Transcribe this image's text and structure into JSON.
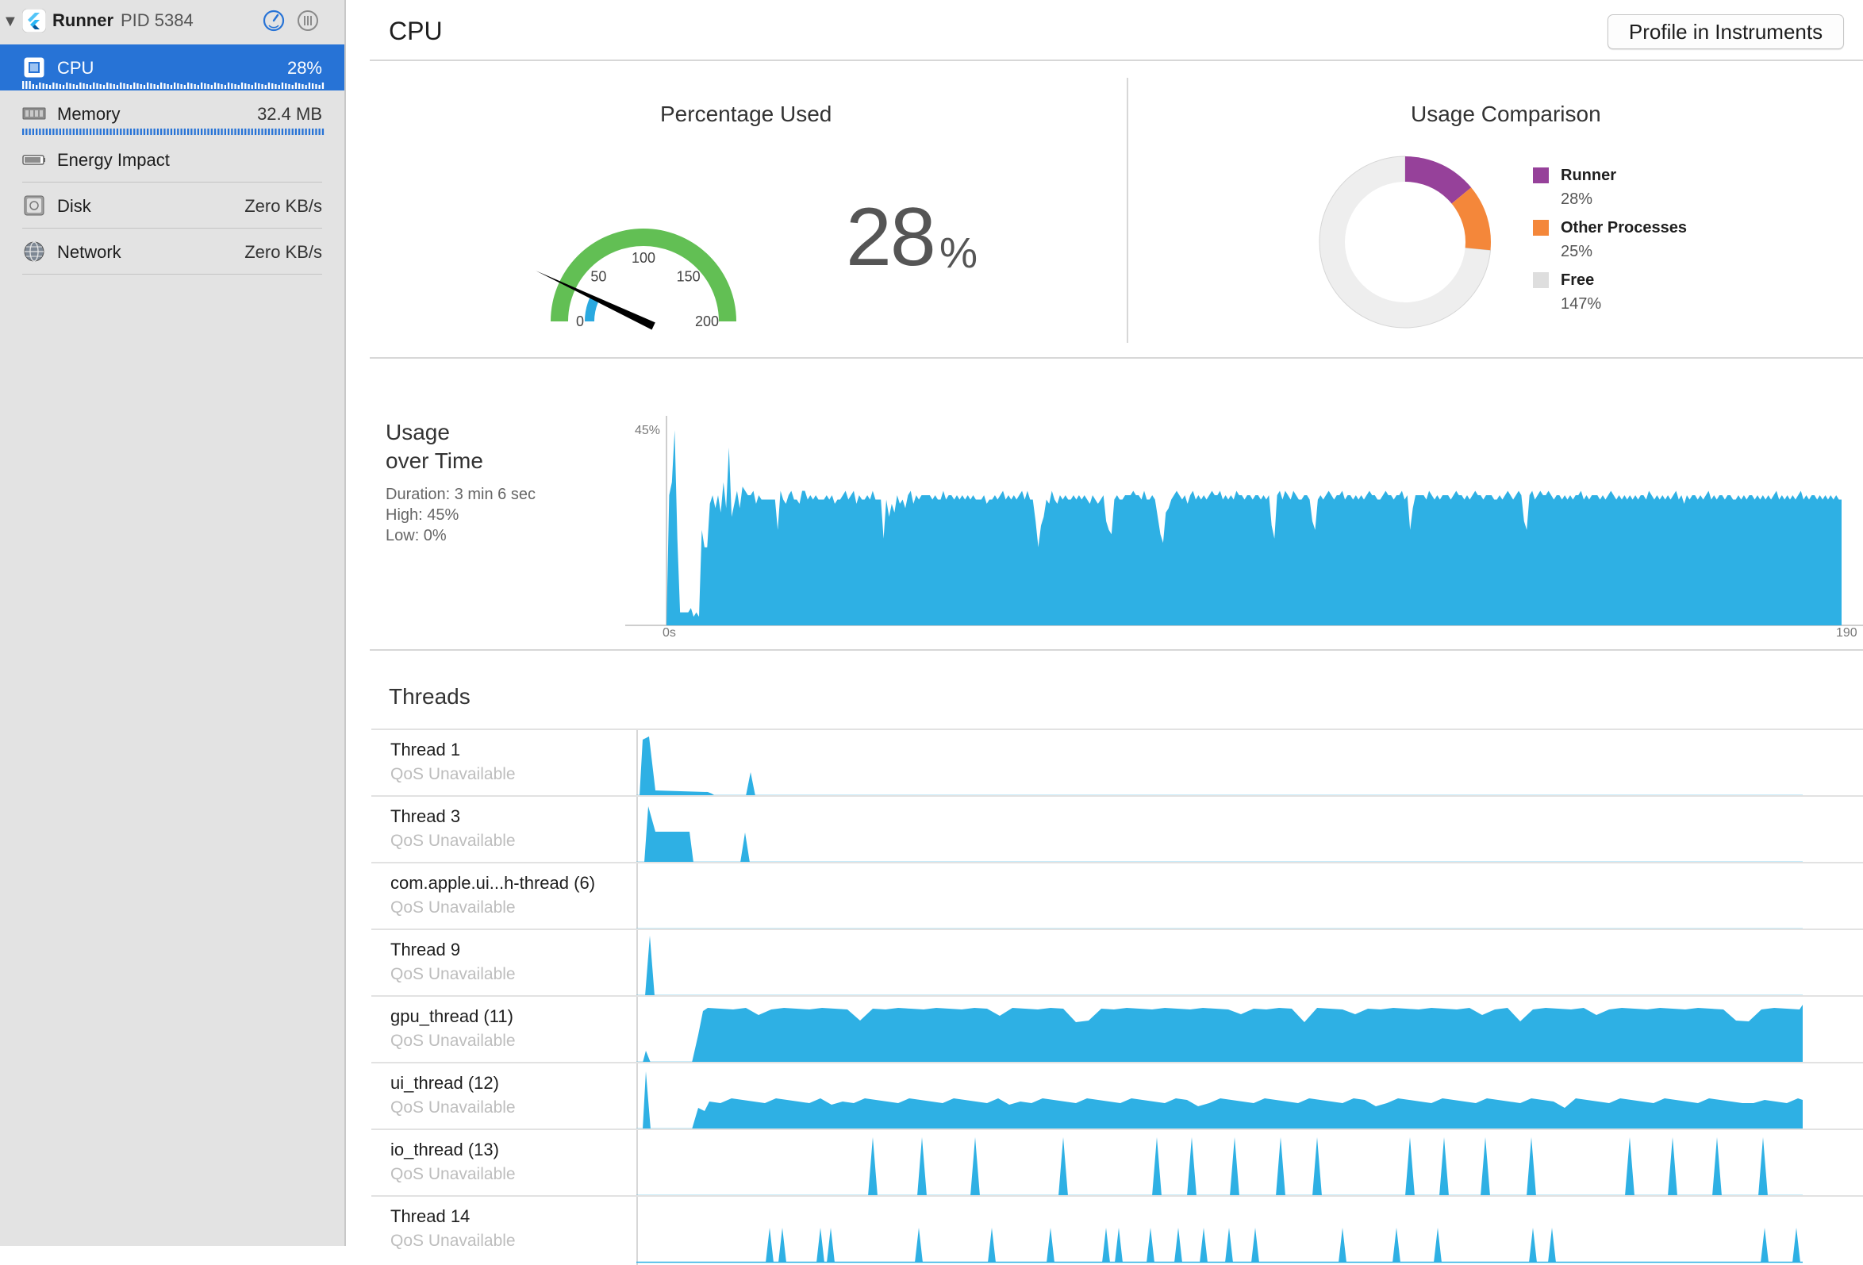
{
  "sidebar": {
    "process_name": "Runner",
    "process_pid": "PID 5384",
    "items": [
      {
        "label": "CPU",
        "value": "28%",
        "icon": "cpu-icon",
        "selected": true
      },
      {
        "label": "Memory",
        "value": "32.4 MB",
        "icon": "memory-icon",
        "selected": false
      },
      {
        "label": "Energy Impact",
        "value": "",
        "icon": "battery-icon",
        "selected": false
      },
      {
        "label": "Disk",
        "value": "Zero KB/s",
        "icon": "disk-icon",
        "selected": false
      },
      {
        "label": "Network",
        "value": "Zero KB/s",
        "icon": "globe-icon",
        "selected": false
      }
    ]
  },
  "header": {
    "title": "CPU",
    "profile_button": "Profile in Instruments"
  },
  "gauge": {
    "title": "Percentage Used",
    "value": "28",
    "unit": "%",
    "ticks": [
      "0",
      "50",
      "100",
      "150",
      "200"
    ],
    "max": 200,
    "colors": {
      "track": "#62bf54",
      "fill": "#2aa9e0",
      "needle": "#000000"
    }
  },
  "comparison": {
    "title": "Usage Comparison",
    "legend": [
      {
        "name": "Runner",
        "value": "28%",
        "color": "#96419a"
      },
      {
        "name": "Other Processes",
        "value": "25%",
        "color": "#f4873a"
      },
      {
        "name": "Free",
        "value": "147%",
        "color": "#dedede"
      }
    ]
  },
  "usage": {
    "title_line1": "Usage",
    "title_line2": "over Time",
    "duration": "Duration: 3 min 6 sec",
    "high": "High: 45%",
    "low": "Low: 0%",
    "y_label": "45%",
    "x_start": "0s",
    "x_end": "190",
    "color": "#2eb0e4"
  },
  "threads_title": "Threads",
  "threads": [
    {
      "name": "Thread 1",
      "qos": "QoS Unavailable"
    },
    {
      "name": "Thread 3",
      "qos": "QoS Unavailable"
    },
    {
      "name": "com.apple.ui...h-thread (6)",
      "qos": "QoS Unavailable"
    },
    {
      "name": "Thread 9",
      "qos": "QoS Unavailable"
    },
    {
      "name": "gpu_thread (11)",
      "qos": "QoS Unavailable"
    },
    {
      "name": "ui_thread (12)",
      "qos": "QoS Unavailable"
    },
    {
      "name": "io_thread (13)",
      "qos": "QoS Unavailable"
    },
    {
      "name": "Thread 14",
      "qos": "QoS Unavailable"
    }
  ],
  "chart_data": {
    "type": "area",
    "title": "Usage over Time",
    "xlabel": "",
    "ylabel": "",
    "xlim": [
      0,
      190
    ],
    "ylim": [
      0,
      45
    ],
    "x_tick_labels": [
      "0s",
      "190"
    ],
    "y_tick_labels": [
      "45%"
    ],
    "series": [
      {
        "values": [
          0,
          30,
          33,
          45,
          20,
          3,
          3,
          3,
          3,
          4,
          2,
          3,
          2,
          22,
          18,
          18,
          28,
          30,
          27,
          30,
          26,
          33,
          27,
          41,
          25,
          28,
          31,
          27,
          32,
          31,
          30,
          30,
          31,
          28,
          30,
          29,
          29,
          29,
          29,
          29,
          29,
          22,
          31,
          29,
          28,
          30,
          31,
          29,
          29,
          28,
          31,
          31,
          29,
          30,
          29,
          30,
          29,
          29,
          29,
          30,
          29,
          30,
          28,
          29,
          29,
          30,
          31,
          29,
          30,
          31,
          28,
          30,
          29,
          29,
          30,
          29,
          31,
          29,
          29,
          29,
          20,
          29,
          25,
          28,
          26,
          30,
          28,
          29,
          27,
          30,
          31,
          28,
          30,
          29,
          30,
          30,
          30,
          30,
          29,
          30,
          29,
          29,
          31,
          29,
          30,
          30,
          29,
          30,
          29,
          30,
          29,
          30,
          29,
          30,
          29,
          29,
          29,
          30,
          28,
          29,
          29,
          30,
          29,
          30,
          31,
          29,
          30,
          29,
          30,
          29,
          30,
          31,
          29,
          31,
          29,
          29,
          24,
          18,
          23,
          25,
          29,
          28,
          31,
          29,
          28,
          30,
          29,
          30,
          29,
          29,
          30,
          29,
          30,
          29,
          30,
          29,
          28,
          30,
          29,
          28,
          29,
          30,
          24,
          22,
          21,
          29,
          30,
          29,
          29,
          30,
          30,
          30,
          31,
          30,
          30,
          29,
          31,
          29,
          29,
          30,
          29,
          25,
          21,
          19,
          26,
          27,
          29,
          30,
          31,
          30,
          29,
          30,
          28,
          30,
          31,
          29,
          30,
          29,
          30,
          29,
          30,
          31,
          30,
          30,
          31,
          29,
          30,
          29,
          30,
          29,
          31,
          30,
          30,
          29,
          30,
          30,
          29,
          30,
          30,
          29,
          30,
          29,
          30,
          23,
          20,
          30,
          31,
          29,
          31,
          30,
          29,
          31,
          30,
          29,
          29,
          30,
          30,
          29,
          24,
          22,
          29,
          30,
          29,
          30,
          31,
          30,
          29,
          30,
          30,
          31,
          29,
          30,
          30,
          29,
          30,
          29,
          30,
          29,
          30,
          31,
          30,
          30,
          29,
          29,
          30,
          31,
          30,
          30,
          29,
          30,
          30,
          31,
          29,
          30,
          22,
          27,
          30,
          30,
          30,
          30,
          29,
          31,
          30,
          29,
          30,
          29,
          30,
          30,
          30,
          29,
          30,
          31,
          30,
          30,
          29,
          30,
          29,
          30,
          31,
          30,
          30,
          29,
          30,
          30,
          30,
          29,
          29,
          30,
          29,
          30,
          31,
          30,
          29,
          30,
          31,
          30,
          24,
          22,
          30,
          31,
          29,
          30,
          31,
          30,
          30,
          31,
          30,
          29,
          30,
          30,
          29,
          30,
          29,
          30,
          29,
          30,
          30,
          31,
          29,
          30,
          29,
          30,
          30,
          30,
          29,
          30,
          29,
          30,
          31,
          30,
          29,
          30,
          29,
          30,
          29,
          30,
          29,
          30,
          29,
          30,
          30,
          29,
          31,
          30,
          29,
          30,
          29,
          30,
          29,
          30,
          29,
          30,
          31,
          29,
          30,
          28,
          30,
          29,
          30,
          30,
          29,
          30,
          29,
          30,
          31,
          29,
          30,
          29,
          30,
          30,
          29,
          30,
          30,
          29,
          29,
          30,
          29,
          30,
          29,
          30,
          30,
          29,
          30,
          29,
          30,
          29,
          30,
          29,
          30,
          31,
          29,
          30,
          29,
          30,
          29,
          30,
          29,
          30,
          31,
          29,
          30,
          29,
          30,
          30,
          29,
          30,
          29,
          30,
          29,
          30,
          29,
          30,
          29,
          29
        ]
      }
    ],
    "grid": false,
    "legend": "none"
  }
}
